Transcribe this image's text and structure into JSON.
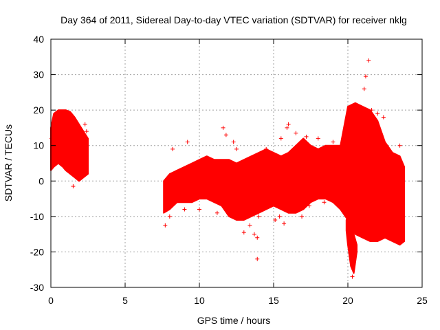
{
  "chart_data": {
    "type": "scatter",
    "title": "Day 364 of 2011, Sidereal Day-to-day VTEC variation (SDTVAR) for receiver nklg",
    "xlabel": "GPS time / hours",
    "ylabel": "SDTVAR / TECUs",
    "xlim": [
      0,
      25
    ],
    "ylim": [
      -30,
      40
    ],
    "xticks": [
      0,
      5,
      10,
      15,
      20,
      25
    ],
    "yticks": [
      -30,
      -20,
      -10,
      0,
      10,
      20,
      30,
      40
    ],
    "grid": true,
    "marker": "+",
    "color": "#ff0000",
    "series": [
      {
        "name": "SDTVAR",
        "envelope_segments": [
          {
            "x": [
              0.0,
              0.2,
              0.5,
              0.8,
              1.0,
              1.3,
              1.6,
              1.9,
              2.2,
              2.5
            ],
            "upper": [
              15,
              19,
              20,
              20,
              20,
              19.5,
              18,
              16,
              14,
              12
            ],
            "lower": [
              3,
              4,
              5,
              4,
              3,
              2,
              1,
              0,
              1,
              2
            ]
          },
          {
            "x": [
              7.6,
              8.0,
              8.5,
              9.0,
              9.5,
              10.0,
              10.5,
              11.0,
              11.5,
              12.0,
              12.5,
              13.0,
              13.5,
              14.0,
              14.5,
              15.0,
              15.5,
              16.0,
              16.5,
              17.0,
              17.5,
              18.0,
              18.5,
              19.0,
              19.5,
              20.0,
              20.5,
              21.0,
              21.5,
              22.0,
              22.5,
              23.0,
              23.5,
              23.8
            ],
            "upper": [
              0,
              2,
              3,
              4,
              5,
              6,
              7,
              6,
              6,
              6,
              5,
              6,
              7,
              8,
              9,
              8,
              7,
              8,
              10,
              12,
              10,
              9,
              10,
              10,
              10,
              21,
              22,
              21,
              20,
              17,
              11,
              8,
              7,
              4
            ],
            "lower": [
              -9,
              -8,
              -6,
              -6,
              -6,
              -5,
              -5,
              -6,
              -7,
              -10,
              -11,
              -11,
              -10,
              -9,
              -8,
              -7,
              -8,
              -9,
              -9,
              -8,
              -6,
              -5,
              -5,
              -6,
              -8,
              -11,
              -15,
              -16,
              -17,
              -17,
              -16,
              -17,
              -18,
              -17
            ]
          },
          {
            "x": [
              19.9,
              20.0,
              20.2,
              20.4,
              20.6
            ],
            "upper": [
              -11,
              -10,
              -12,
              -15,
              -18
            ],
            "lower": [
              -14,
              -18,
              -24,
              -26,
              -20
            ]
          }
        ],
        "outliers": [
          [
            0.05,
            12
          ],
          [
            1.5,
            -1.5
          ],
          [
            2.3,
            16
          ],
          [
            2.4,
            14
          ],
          [
            7.7,
            -12.5
          ],
          [
            8.0,
            -10
          ],
          [
            8.2,
            9
          ],
          [
            8.8,
            2
          ],
          [
            9.2,
            11
          ],
          [
            9.0,
            -8
          ],
          [
            10.0,
            -8
          ],
          [
            11.2,
            -9
          ],
          [
            11.6,
            15
          ],
          [
            11.8,
            13
          ],
          [
            12.1,
            -9
          ],
          [
            12.3,
            11
          ],
          [
            12.5,
            9
          ],
          [
            12.8,
            -10
          ],
          [
            13.0,
            -14.5
          ],
          [
            13.4,
            -12.5
          ],
          [
            13.7,
            -15
          ],
          [
            13.9,
            -16
          ],
          [
            13.9,
            -22
          ],
          [
            14.0,
            -10
          ],
          [
            14.5,
            9
          ],
          [
            15.1,
            -11
          ],
          [
            15.4,
            -10
          ],
          [
            15.5,
            12
          ],
          [
            15.7,
            -12
          ],
          [
            15.9,
            15
          ],
          [
            16.0,
            16
          ],
          [
            16.5,
            13.5
          ],
          [
            16.9,
            -10
          ],
          [
            17.2,
            12.5
          ],
          [
            17.4,
            -7
          ],
          [
            18.0,
            12
          ],
          [
            18.4,
            -6
          ],
          [
            19.0,
            11
          ],
          [
            19.5,
            -7
          ],
          [
            19.9,
            10
          ],
          [
            20.3,
            -27
          ],
          [
            21.1,
            26
          ],
          [
            21.2,
            29.5
          ],
          [
            21.4,
            34
          ],
          [
            21.6,
            20
          ],
          [
            22.0,
            19
          ],
          [
            22.4,
            18
          ],
          [
            22.6,
            3
          ],
          [
            22.8,
            1
          ],
          [
            23.1,
            7
          ],
          [
            23.5,
            10
          ],
          [
            23.7,
            -16
          ]
        ]
      }
    ]
  }
}
